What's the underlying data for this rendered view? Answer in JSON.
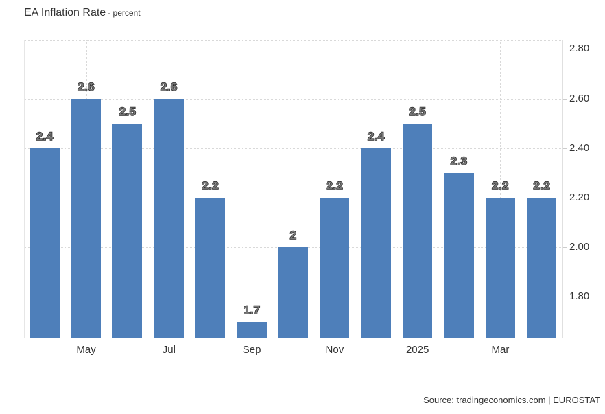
{
  "title": {
    "main": "EA Inflation Rate",
    "suffix": "- percent"
  },
  "source": "Source: tradingeconomics.com | EUROSTAT",
  "chart_data": {
    "type": "bar",
    "title": "EA Inflation Rate - percent",
    "values": [
      2.4,
      2.6,
      2.5,
      2.6,
      2.2,
      1.7,
      2,
      2.2,
      2.4,
      2.5,
      2.3,
      2.2,
      2.2
    ],
    "bar_labels": [
      "2.4",
      "2.6",
      "2.5",
      "2.6",
      "2.2",
      "1.7",
      "2",
      "2.2",
      "2.4",
      "2.5",
      "2.3",
      "2.2",
      "2.2"
    ],
    "x_ticks": [
      {
        "bar_index": 1,
        "label": "May"
      },
      {
        "bar_index": 3,
        "label": "Jul"
      },
      {
        "bar_index": 5,
        "label": "Sep"
      },
      {
        "bar_index": 7,
        "label": "Nov"
      },
      {
        "bar_index": 9,
        "label": "2025"
      },
      {
        "bar_index": 11,
        "label": "Mar"
      }
    ],
    "y_ticks": [
      {
        "value": 2.8,
        "label": "2.80"
      },
      {
        "value": 2.6,
        "label": "2.60"
      },
      {
        "value": 2.4,
        "label": "2.40"
      },
      {
        "value": 2.2,
        "label": "2.20"
      },
      {
        "value": 2.0,
        "label": "2.00"
      },
      {
        "value": 1.8,
        "label": "1.80"
      }
    ],
    "ylim": [
      1.635,
      2.837
    ],
    "y_axis_side": "right",
    "grid": "dotted",
    "legend": "none",
    "bar_color": "#4e7fba"
  }
}
